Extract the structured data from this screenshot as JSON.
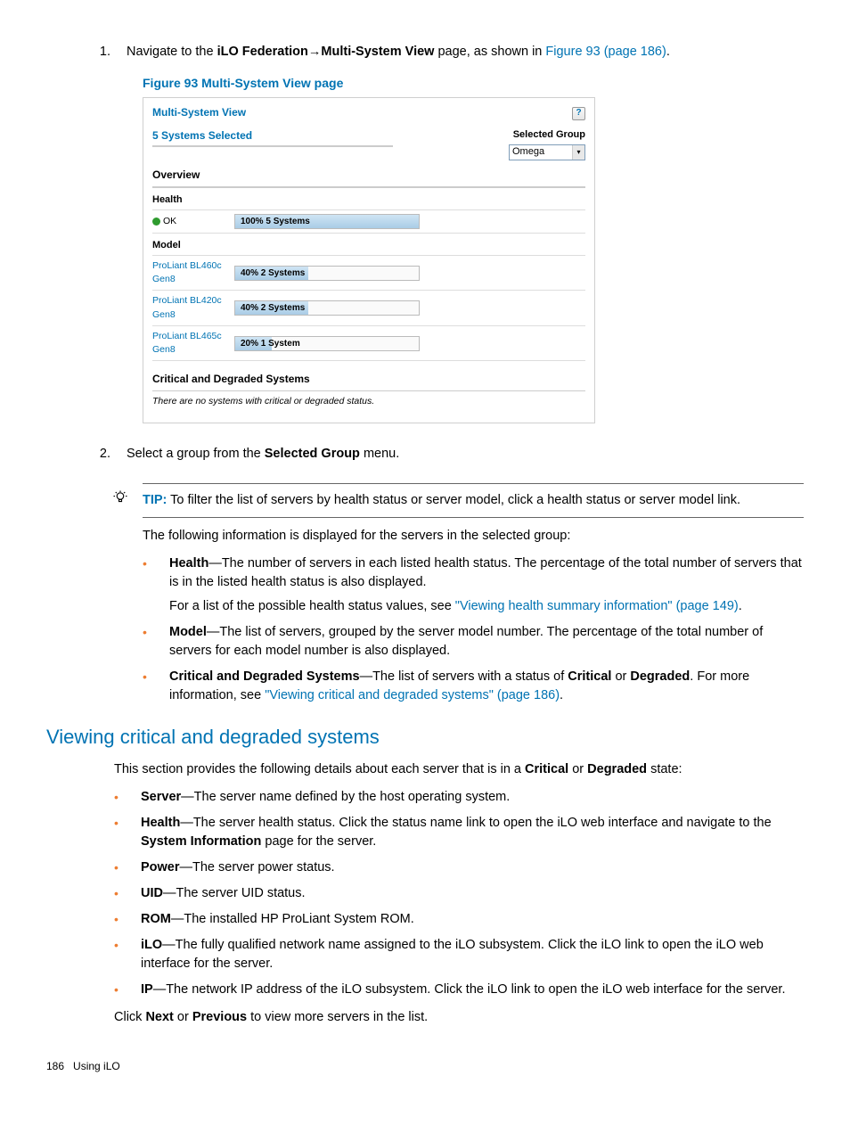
{
  "step1": {
    "num": "1.",
    "text_pre": "Navigate to the ",
    "bold1": "iLO Federation",
    "arrow": "→",
    "bold2": "Multi-System View",
    "text_post": " page, as shown in ",
    "link": "Figure 93 (page 186)",
    "period": "."
  },
  "figure": {
    "caption": "Figure 93 Multi-System View page",
    "title": "Multi-System View",
    "help_icon": "?",
    "selected_text": "5 Systems Selected",
    "group_label": "Selected Group",
    "group_value": "Omega",
    "overview": "Overview",
    "health_head": "Health",
    "health_rows": [
      {
        "label": "OK",
        "pct": 100,
        "text": "100% 5 Systems",
        "ok": true
      }
    ],
    "model_head": "Model",
    "model_rows": [
      {
        "label": "ProLiant BL460c Gen8",
        "pct": 40,
        "text": "40% 2 Systems"
      },
      {
        "label": "ProLiant BL420c Gen8",
        "pct": 40,
        "text": "40% 2 Systems"
      },
      {
        "label": "ProLiant BL465c Gen8",
        "pct": 20,
        "text": "20% 1 System"
      }
    ],
    "critical_head": "Critical and Degraded Systems",
    "critical_status": "There are no systems with critical or degraded status."
  },
  "step2": {
    "num": "2.",
    "text_pre": "Select a group from the ",
    "bold": "Selected Group",
    "text_post": " menu."
  },
  "tip": {
    "label": "TIP:",
    "text": " To filter the list of servers by health status or server model, click a health status or server model link."
  },
  "intro": "The following information is displayed for the servers in the selected group:",
  "bullets1": [
    {
      "b": "Health",
      "t": "—The number of servers in each listed health status. The percentage of the total number of servers that is in the listed health status is also displayed.",
      "sub_pre": "For a list of the possible health status values, see ",
      "sub_link": "\"Viewing health summary information\" (page 149)",
      "sub_post": "."
    },
    {
      "b": "Model",
      "t": "—The list of servers, grouped by the server model number. The percentage of the total number of servers for each model number is also displayed."
    },
    {
      "b": "Critical and Degraded Systems",
      "t": "—The list of servers with a status of ",
      "b2": "Critical",
      "t2": " or ",
      "b3": "Degraded",
      "t3": ". For more information, see ",
      "link": "\"Viewing critical and degraded systems\" (page 186)",
      "t4": "."
    }
  ],
  "section_heading": "Viewing critical and degraded systems",
  "section_intro_pre": "This section provides the following details about each server that is in a ",
  "section_intro_b1": "Critical",
  "section_intro_mid": " or ",
  "section_intro_b2": "Degraded",
  "section_intro_post": " state:",
  "bullets2": [
    {
      "b": "Server",
      "t": "—The server name defined by the host operating system."
    },
    {
      "b": "Health",
      "t": "—The server health status. Click the status name link to open the iLO web interface and navigate to the ",
      "b2": "System Information",
      "t2": " page for the server."
    },
    {
      "b": "Power",
      "t": "—The server power status."
    },
    {
      "b": "UID",
      "t": "—The server UID status."
    },
    {
      "b": "ROM",
      "t": "—The installed HP ProLiant System ROM."
    },
    {
      "b": "iLO",
      "t": "—The fully qualified network name assigned to the iLO subsystem. Click the iLO link to open the iLO web interface for the server."
    },
    {
      "b": "IP",
      "t": "—The network IP address of the iLO subsystem. Click the iLO link to open the iLO web interface for the server."
    }
  ],
  "click_pre": "Click ",
  "click_b1": "Next",
  "click_mid": " or ",
  "click_b2": "Previous",
  "click_post": " to view more servers in the list.",
  "footer_page": "186",
  "footer_text": "Using iLO"
}
